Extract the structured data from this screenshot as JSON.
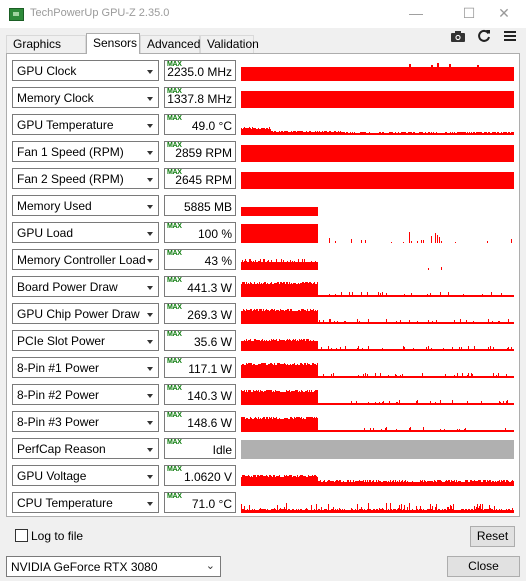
{
  "window": {
    "title": "TechPowerUp GPU-Z 2.35.0",
    "minimize": "—",
    "maximize": "☐",
    "close": "✕"
  },
  "tabs": [
    {
      "label": "Graphics Card",
      "active": false
    },
    {
      "label": "Sensors",
      "active": true
    },
    {
      "label": "Advanced",
      "active": false
    },
    {
      "label": "Validation",
      "active": false
    }
  ],
  "toolbar": {
    "camera_icon": "camera-icon",
    "refresh_icon": "refresh-icon",
    "menu_icon": "menu-icon"
  },
  "max_tag": "MAX",
  "sensors": [
    {
      "name": "GPU Clock",
      "value": "2235.0 MHz",
      "max": true,
      "color": "#ff0000",
      "graph": "full_spiky"
    },
    {
      "name": "Memory Clock",
      "value": "1337.8 MHz",
      "max": true,
      "color": "#ff0000",
      "graph": "full"
    },
    {
      "name": "GPU Temperature",
      "value": "49.0 °C",
      "max": true,
      "color": "#ff0000",
      "graph": "temp"
    },
    {
      "name": "Fan 1 Speed (RPM)",
      "value": "2859 RPM",
      "max": true,
      "color": "#ff0000",
      "graph": "full"
    },
    {
      "name": "Fan 2 Speed (RPM)",
      "value": "2645 RPM",
      "max": true,
      "color": "#ff0000",
      "graph": "full"
    },
    {
      "name": "Memory Used",
      "value": "5885 MB",
      "max": false,
      "color": "#ff0000",
      "graph": "mem"
    },
    {
      "name": "GPU Load",
      "value": "100 %",
      "max": true,
      "color": "#ff0000",
      "graph": "load"
    },
    {
      "name": "Memory Controller Load",
      "value": "43 %",
      "max": true,
      "color": "#ff0000",
      "graph": "mcload"
    },
    {
      "name": "Board Power Draw",
      "value": "441.3 W",
      "max": true,
      "color": "#ff0000",
      "graph": "power"
    },
    {
      "name": "GPU Chip Power Draw",
      "value": "269.3 W",
      "max": true,
      "color": "#ff0000",
      "graph": "power"
    },
    {
      "name": "PCIe Slot Power",
      "value": "35.6 W",
      "max": true,
      "color": "#ff0000",
      "graph": "power_low"
    },
    {
      "name": "8-Pin #1 Power",
      "value": "117.1 W",
      "max": true,
      "color": "#ff0000",
      "graph": "power"
    },
    {
      "name": "8-Pin #2 Power",
      "value": "140.3 W",
      "max": true,
      "color": "#ff0000",
      "graph": "power"
    },
    {
      "name": "8-Pin #3 Power",
      "value": "148.6 W",
      "max": true,
      "color": "#ff0000",
      "graph": "power"
    },
    {
      "name": "PerfCap Reason",
      "value": "Idle",
      "max": true,
      "color": "#b0b0b0",
      "graph": "gray"
    },
    {
      "name": "GPU Voltage",
      "value": "1.0620 V",
      "max": true,
      "color": "#ff0000",
      "graph": "voltage"
    },
    {
      "name": "CPU Temperature",
      "value": "71.0 °C",
      "max": true,
      "color": "#ff0000",
      "graph": "cpu_temp"
    }
  ],
  "footer": {
    "log_label": "Log to file",
    "log_checked": false,
    "reset_label": "Reset",
    "gpu_selected": "NVIDIA GeForce RTX 3080",
    "close_label": "Close"
  }
}
